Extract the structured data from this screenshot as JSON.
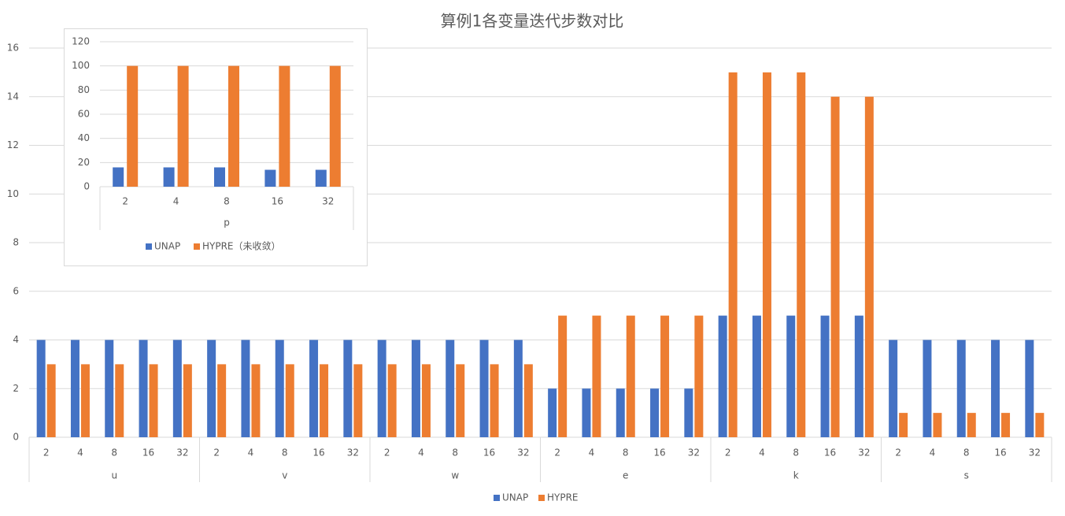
{
  "chart_data": [
    {
      "type": "bar",
      "title": "算例1各变量迭代步数对比",
      "categories": [
        "2",
        "4",
        "8",
        "16",
        "32",
        "2",
        "4",
        "8",
        "16",
        "32",
        "2",
        "4",
        "8",
        "16",
        "32",
        "2",
        "4",
        "8",
        "16",
        "32",
        "2",
        "4",
        "8",
        "16",
        "32",
        "2",
        "4",
        "8",
        "16",
        "32"
      ],
      "category_groups": [
        "u",
        "v",
        "w",
        "e",
        "k",
        "s"
      ],
      "series": [
        {
          "name": "UNAP",
          "color": "#4472c4",
          "values": [
            4,
            4,
            4,
            4,
            4,
            4,
            4,
            4,
            4,
            4,
            4,
            4,
            4,
            4,
            4,
            2,
            2,
            2,
            2,
            2,
            5,
            5,
            5,
            5,
            5,
            4,
            4,
            4,
            4,
            4
          ]
        },
        {
          "name": "HYPRE",
          "color": "#ed7d31",
          "values": [
            3,
            3,
            3,
            3,
            3,
            3,
            3,
            3,
            3,
            3,
            3,
            3,
            3,
            3,
            3,
            5,
            5,
            5,
            5,
            5,
            15,
            15,
            15,
            14,
            14,
            1,
            1,
            1,
            1,
            1
          ]
        }
      ],
      "ylim": [
        0,
        16
      ],
      "yticks": [
        0,
        2,
        4,
        6,
        8,
        10,
        12,
        14,
        16
      ],
      "grid": true,
      "legend": "bottom"
    },
    {
      "type": "bar",
      "categories": [
        "2",
        "4",
        "8",
        "16",
        "32"
      ],
      "category_groups": [
        "p"
      ],
      "series": [
        {
          "name": "UNAP",
          "color": "#4472c4",
          "values": [
            16,
            16,
            16,
            14,
            14
          ]
        },
        {
          "name": "HYPRE（未收敛）",
          "color": "#ed7d31",
          "values": [
            100,
            100,
            100,
            100,
            100
          ]
        }
      ],
      "ylim": [
        0,
        120
      ],
      "yticks": [
        0,
        20,
        40,
        60,
        80,
        100,
        120
      ],
      "grid": true,
      "legend": "bottom"
    }
  ]
}
